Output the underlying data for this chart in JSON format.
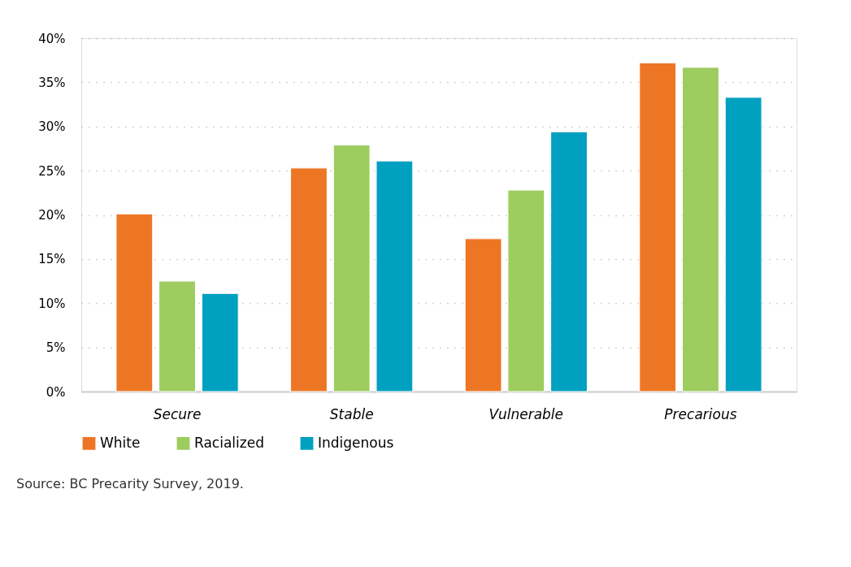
{
  "chart_data": {
    "type": "bar",
    "categories": [
      "Secure",
      "Stable",
      "Vulnerable",
      "Precarious"
    ],
    "series": [
      {
        "name": "White",
        "color": "#ed7625",
        "values": [
          20.1,
          25.3,
          17.3,
          37.2
        ]
      },
      {
        "name": "Racialized",
        "color": "#9dcc5f",
        "values": [
          12.5,
          27.9,
          22.8,
          36.7
        ]
      },
      {
        "name": "Indigenous",
        "color": "#00a0c0",
        "values": [
          11.1,
          26.1,
          29.4,
          33.3
        ]
      }
    ],
    "ylim": [
      0,
      40
    ],
    "yticks": [
      {
        "value": 0,
        "label": "0%"
      },
      {
        "value": 5,
        "label": "5%"
      },
      {
        "value": 10,
        "label": "10%"
      },
      {
        "value": 15,
        "label": "15%"
      },
      {
        "value": 20,
        "label": "20%"
      },
      {
        "value": 25,
        "label": "25%"
      },
      {
        "value": 30,
        "label": "30%"
      },
      {
        "value": 35,
        "label": "35%"
      },
      {
        "value": 40,
        "label": "40%"
      }
    ],
    "grid": "y",
    "legend": "bottom",
    "annotations": [
      "Source: BC Precarity Survey, 2019."
    ]
  }
}
